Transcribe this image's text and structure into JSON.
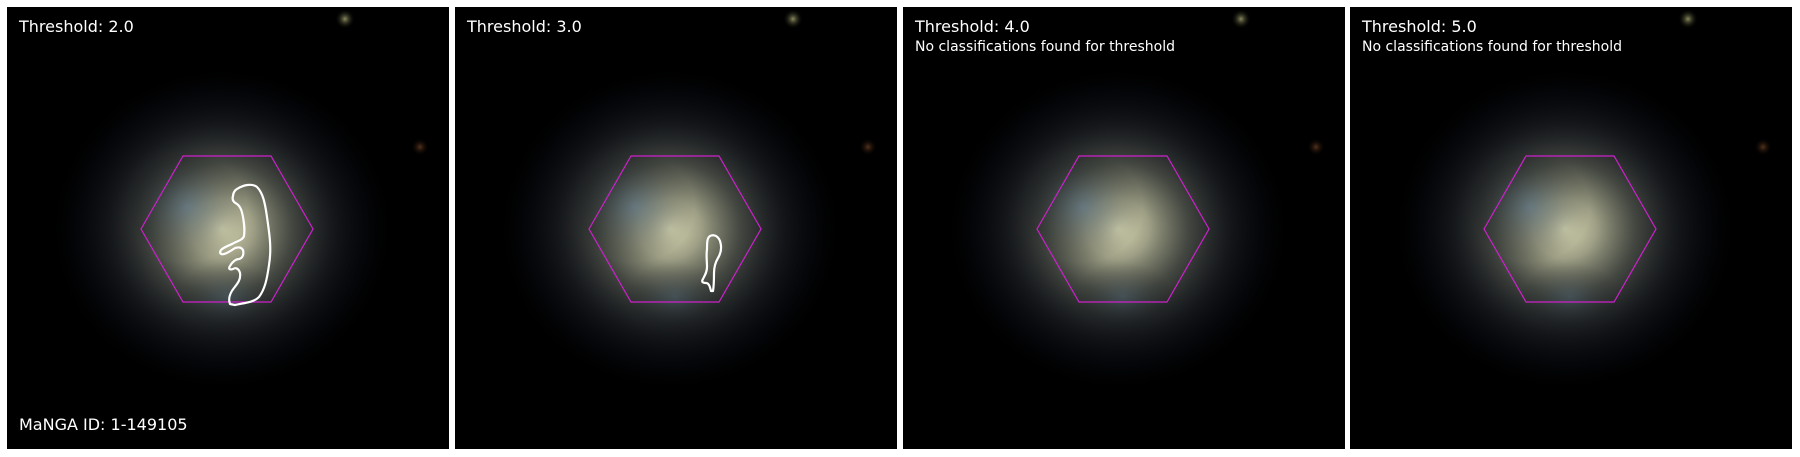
{
  "panels": [
    {
      "title": "Threshold: 2.0",
      "note": "",
      "id_label": "MaNGA ID: 1-149105",
      "has_contour": true
    },
    {
      "title": "Threshold: 3.0",
      "note": "",
      "id_label": "",
      "has_contour": true
    },
    {
      "title": "Threshold: 4.0",
      "note": "No classifications found for threshold",
      "id_label": "",
      "has_contour": false
    },
    {
      "title": "Threshold: 5.0",
      "note": "No classifications found for threshold",
      "id_label": "",
      "has_contour": false
    }
  ],
  "colors": {
    "background": "#000000",
    "hexagon": "#cc22cc",
    "contour": "#ffffff",
    "text": "#ffffff"
  }
}
